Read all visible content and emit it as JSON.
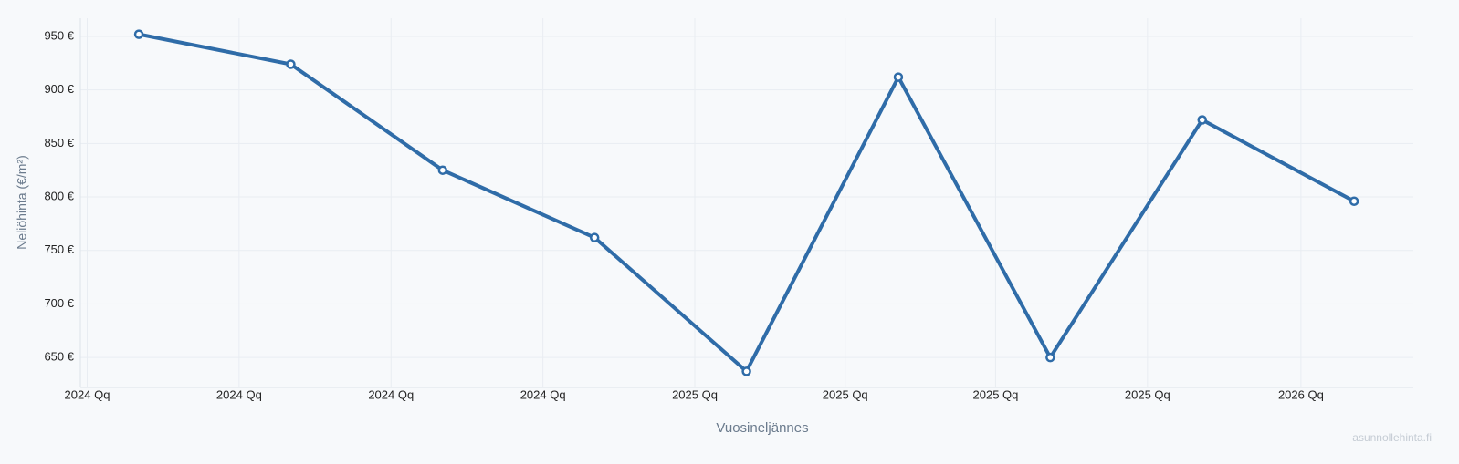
{
  "chart_data": {
    "type": "line",
    "x_label": "Vuosineljännes",
    "y_label": "Neliöhinta (€/m²)",
    "watermark": "asunnollehinta.fi",
    "x": [
      0,
      1,
      2,
      3,
      4,
      5,
      6,
      7,
      8
    ],
    "series": [
      {
        "name": "Neliöhinta",
        "color": "#2f6ca8",
        "values": [
          952,
          924,
          825,
          762,
          637,
          912,
          650,
          872,
          796
        ]
      }
    ],
    "xlim": [
      -0.385,
      8.39
    ],
    "xticks": [
      {
        "value": -0.34,
        "label": "2024 Qq"
      },
      {
        "value": 0.66,
        "label": "2024 Qq"
      },
      {
        "value": 1.66,
        "label": "2024 Qq"
      },
      {
        "value": 2.66,
        "label": "2024 Qq"
      },
      {
        "value": 3.66,
        "label": "2025 Qq"
      },
      {
        "value": 4.65,
        "label": "2025 Qq"
      },
      {
        "value": 5.64,
        "label": "2025 Qq"
      },
      {
        "value": 6.64,
        "label": "2025 Qq"
      },
      {
        "value": 7.65,
        "label": "2026 Qq"
      }
    ],
    "ylim": [
      622,
      967
    ],
    "yticks": [
      {
        "value": 650,
        "label": "650 €"
      },
      {
        "value": 700,
        "label": "700 €"
      },
      {
        "value": 750,
        "label": "750 €"
      },
      {
        "value": 800,
        "label": "800 €"
      },
      {
        "value": 850,
        "label": "850 €"
      },
      {
        "value": 900,
        "label": "900 €"
      },
      {
        "value": 950,
        "label": "950 €"
      }
    ],
    "grid": true
  }
}
